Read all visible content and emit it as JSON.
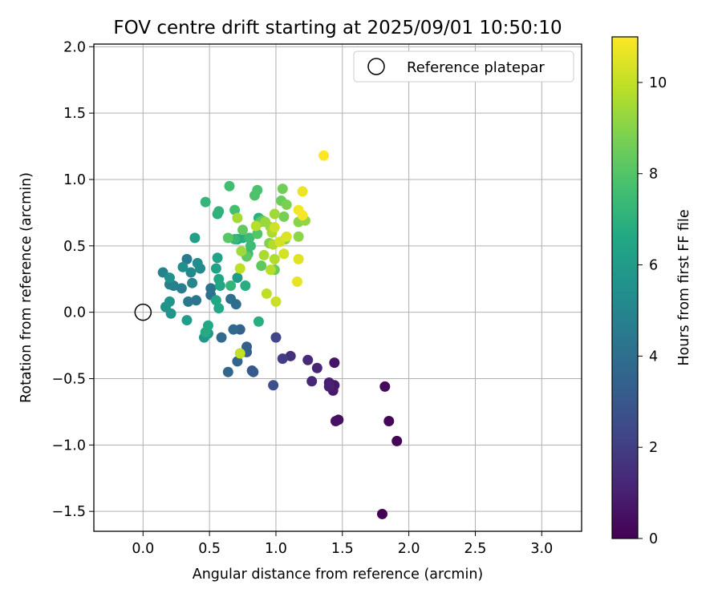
{
  "chart_data": {
    "type": "scatter",
    "title": "FOV centre drift starting at 2025/09/01 10:50:10",
    "xlabel": "Angular distance from reference (arcmin)",
    "ylabel": "Rotation from reference (arcmin)",
    "xlim": [
      -0.37,
      3.3
    ],
    "ylim": [
      -1.65,
      2.02
    ],
    "xticks": [
      "0.0",
      "0.5",
      "1.0",
      "1.5",
      "2.0",
      "2.5",
      "3.0"
    ],
    "yticks": [
      "2.0",
      "1.5",
      "1.0",
      "0.5",
      "0.0",
      "−0.5",
      "−1.0",
      "−1.5"
    ],
    "grid": true,
    "legend": {
      "label": "Reference platepar",
      "position": "top-right"
    },
    "reference_point": {
      "x": 0.0,
      "y": 0.0
    },
    "colorbar": {
      "label": "Hours from first FF file",
      "range": [
        0,
        11
      ],
      "ticks": [
        "0",
        "2",
        "4",
        "6",
        "8",
        "10"
      ],
      "colormap": "viridis"
    },
    "points": [
      {
        "x": 1.8,
        "y": -1.52,
        "h": 0.0
      },
      {
        "x": 1.91,
        "y": -0.97,
        "h": 0.1
      },
      {
        "x": 1.85,
        "y": -0.82,
        "h": 0.2
      },
      {
        "x": 1.82,
        "y": -0.56,
        "h": 0.3
      },
      {
        "x": 1.47,
        "y": -0.81,
        "h": 0.4
      },
      {
        "x": 1.45,
        "y": -0.82,
        "h": 0.5
      },
      {
        "x": 1.44,
        "y": -0.38,
        "h": 0.6
      },
      {
        "x": 1.44,
        "y": -0.55,
        "h": 0.7
      },
      {
        "x": 1.43,
        "y": -0.59,
        "h": 0.8
      },
      {
        "x": 1.4,
        "y": -0.53,
        "h": 0.9
      },
      {
        "x": 1.4,
        "y": -0.56,
        "h": 1.0
      },
      {
        "x": 1.31,
        "y": -0.42,
        "h": 1.1
      },
      {
        "x": 1.27,
        "y": -0.52,
        "h": 1.2
      },
      {
        "x": 1.24,
        "y": -0.36,
        "h": 1.3
      },
      {
        "x": 1.11,
        "y": -0.33,
        "h": 1.5
      },
      {
        "x": 1.05,
        "y": -0.35,
        "h": 2.0
      },
      {
        "x": 1.0,
        "y": -0.19,
        "h": 2.3
      },
      {
        "x": 0.98,
        "y": -0.55,
        "h": 2.6
      },
      {
        "x": 0.82,
        "y": -0.44,
        "h": 3.0
      },
      {
        "x": 0.83,
        "y": -0.45,
        "h": 3.1
      },
      {
        "x": 0.78,
        "y": -0.3,
        "h": 3.2
      },
      {
        "x": 0.78,
        "y": -0.26,
        "h": 3.3
      },
      {
        "x": 0.73,
        "y": -0.13,
        "h": 3.4
      },
      {
        "x": 0.71,
        "y": -0.37,
        "h": 3.5
      },
      {
        "x": 0.64,
        "y": -0.45,
        "h": 3.6
      },
      {
        "x": 0.68,
        "y": -0.13,
        "h": 3.7
      },
      {
        "x": 0.59,
        "y": -0.19,
        "h": 3.8
      },
      {
        "x": 0.7,
        "y": 0.06,
        "h": 3.9
      },
      {
        "x": 0.66,
        "y": 0.1,
        "h": 4.0
      },
      {
        "x": 0.51,
        "y": 0.13,
        "h": 4.1
      },
      {
        "x": 0.51,
        "y": 0.18,
        "h": 4.2
      },
      {
        "x": 0.4,
        "y": 0.09,
        "h": 4.3
      },
      {
        "x": 0.34,
        "y": 0.08,
        "h": 4.4
      },
      {
        "x": 0.33,
        "y": 0.4,
        "h": 4.5
      },
      {
        "x": 0.29,
        "y": 0.18,
        "h": 4.6
      },
      {
        "x": 0.23,
        "y": 0.2,
        "h": 4.7
      },
      {
        "x": 0.2,
        "y": 0.21,
        "h": 4.8
      },
      {
        "x": 0.15,
        "y": 0.3,
        "h": 4.9
      },
      {
        "x": 0.37,
        "y": 0.22,
        "h": 5.0
      },
      {
        "x": 0.36,
        "y": 0.3,
        "h": 5.1
      },
      {
        "x": 0.43,
        "y": 0.33,
        "h": 5.2
      },
      {
        "x": 0.41,
        "y": 0.37,
        "h": 5.3
      },
      {
        "x": 0.3,
        "y": 0.34,
        "h": 5.4
      },
      {
        "x": 0.2,
        "y": 0.26,
        "h": 5.5
      },
      {
        "x": 0.17,
        "y": 0.04,
        "h": 5.6
      },
      {
        "x": 0.21,
        "y": -0.01,
        "h": 5.7
      },
      {
        "x": 0.2,
        "y": 0.08,
        "h": 5.7
      },
      {
        "x": 0.46,
        "y": -0.19,
        "h": 5.8
      },
      {
        "x": 0.49,
        "y": -0.16,
        "h": 5.9
      },
      {
        "x": 0.71,
        "y": 0.26,
        "h": 6.0
      },
      {
        "x": 0.71,
        "y": 0.55,
        "h": 6.0
      },
      {
        "x": 0.33,
        "y": -0.06,
        "h": 6.1
      },
      {
        "x": 0.39,
        "y": 0.56,
        "h": 6.2
      },
      {
        "x": 0.55,
        "y": 0.33,
        "h": 6.3
      },
      {
        "x": 0.56,
        "y": 0.41,
        "h": 6.3
      },
      {
        "x": 0.57,
        "y": 0.25,
        "h": 6.4
      },
      {
        "x": 0.58,
        "y": 0.2,
        "h": 6.5
      },
      {
        "x": 0.55,
        "y": 0.09,
        "h": 6.5
      },
      {
        "x": 0.57,
        "y": 0.03,
        "h": 6.6
      },
      {
        "x": 0.49,
        "y": -0.1,
        "h": 6.6
      },
      {
        "x": 0.47,
        "y": -0.15,
        "h": 6.7
      },
      {
        "x": 0.75,
        "y": 0.56,
        "h": 6.8
      },
      {
        "x": 0.77,
        "y": 0.2,
        "h": 6.8
      },
      {
        "x": 0.87,
        "y": -0.07,
        "h": 6.9
      },
      {
        "x": 0.87,
        "y": 0.71,
        "h": 7.0
      },
      {
        "x": 0.56,
        "y": 0.74,
        "h": 7.0
      },
      {
        "x": 0.57,
        "y": 0.76,
        "h": 7.1
      },
      {
        "x": 0.47,
        "y": 0.83,
        "h": 7.2
      },
      {
        "x": 0.66,
        "y": 0.2,
        "h": 7.2
      },
      {
        "x": 0.69,
        "y": 0.55,
        "h": 7.3
      },
      {
        "x": 0.79,
        "y": 0.44,
        "h": 7.4
      },
      {
        "x": 0.81,
        "y": 0.5,
        "h": 7.5
      },
      {
        "x": 0.8,
        "y": 0.56,
        "h": 7.5
      },
      {
        "x": 0.65,
        "y": 0.95,
        "h": 7.6
      },
      {
        "x": 0.69,
        "y": 0.77,
        "h": 7.7
      },
      {
        "x": 0.86,
        "y": 0.92,
        "h": 7.8
      },
      {
        "x": 0.84,
        "y": 0.88,
        "h": 7.9
      },
      {
        "x": 0.86,
        "y": 0.59,
        "h": 8.0
      },
      {
        "x": 0.88,
        "y": 0.68,
        "h": 8.0
      },
      {
        "x": 0.64,
        "y": 0.56,
        "h": 8.1
      },
      {
        "x": 0.78,
        "y": 0.42,
        "h": 8.2
      },
      {
        "x": 0.89,
        "y": 0.35,
        "h": 8.2
      },
      {
        "x": 0.75,
        "y": 0.62,
        "h": 8.3
      },
      {
        "x": 0.9,
        "y": 0.69,
        "h": 8.3
      },
      {
        "x": 0.99,
        "y": 0.32,
        "h": 8.4
      },
      {
        "x": 1.04,
        "y": 0.84,
        "h": 8.5
      },
      {
        "x": 1.05,
        "y": 0.93,
        "h": 8.6
      },
      {
        "x": 1.06,
        "y": 0.72,
        "h": 8.7
      },
      {
        "x": 1.07,
        "y": 0.55,
        "h": 8.7
      },
      {
        "x": 1.08,
        "y": 0.81,
        "h": 8.8
      },
      {
        "x": 0.95,
        "y": 0.52,
        "h": 8.9
      },
      {
        "x": 1.17,
        "y": 0.68,
        "h": 9.0
      },
      {
        "x": 1.17,
        "y": 0.57,
        "h": 9.1
      },
      {
        "x": 1.22,
        "y": 0.69,
        "h": 9.2
      },
      {
        "x": 0.96,
        "y": 0.64,
        "h": 9.3
      },
      {
        "x": 0.92,
        "y": 0.68,
        "h": 9.3
      },
      {
        "x": 0.99,
        "y": 0.74,
        "h": 9.4
      },
      {
        "x": 0.74,
        "y": 0.46,
        "h": 9.4
      },
      {
        "x": 0.71,
        "y": 0.71,
        "h": 9.5
      },
      {
        "x": 0.91,
        "y": 0.43,
        "h": 9.6
      },
      {
        "x": 0.97,
        "y": 0.6,
        "h": 9.6
      },
      {
        "x": 0.98,
        "y": 0.51,
        "h": 9.7
      },
      {
        "x": 0.99,
        "y": 0.4,
        "h": 9.7
      },
      {
        "x": 0.96,
        "y": 0.32,
        "h": 9.8
      },
      {
        "x": 0.85,
        "y": 0.65,
        "h": 9.8
      },
      {
        "x": 0.73,
        "y": 0.33,
        "h": 9.9
      },
      {
        "x": 0.93,
        "y": 0.14,
        "h": 9.9
      },
      {
        "x": 0.73,
        "y": -0.31,
        "h": 10.0
      },
      {
        "x": 1.0,
        "y": 0.08,
        "h": 10.1
      },
      {
        "x": 0.99,
        "y": 0.64,
        "h": 10.2
      },
      {
        "x": 1.03,
        "y": 0.53,
        "h": 10.3
      },
      {
        "x": 1.06,
        "y": 0.44,
        "h": 10.3
      },
      {
        "x": 1.08,
        "y": 0.57,
        "h": 10.4
      },
      {
        "x": 1.17,
        "y": 0.4,
        "h": 10.5
      },
      {
        "x": 1.16,
        "y": 0.23,
        "h": 10.6
      },
      {
        "x": 1.2,
        "y": 0.91,
        "h": 10.7
      },
      {
        "x": 1.17,
        "y": 0.77,
        "h": 10.8
      },
      {
        "x": 1.2,
        "y": 0.73,
        "h": 10.9
      },
      {
        "x": 1.36,
        "y": 1.18,
        "h": 11.0
      }
    ]
  }
}
